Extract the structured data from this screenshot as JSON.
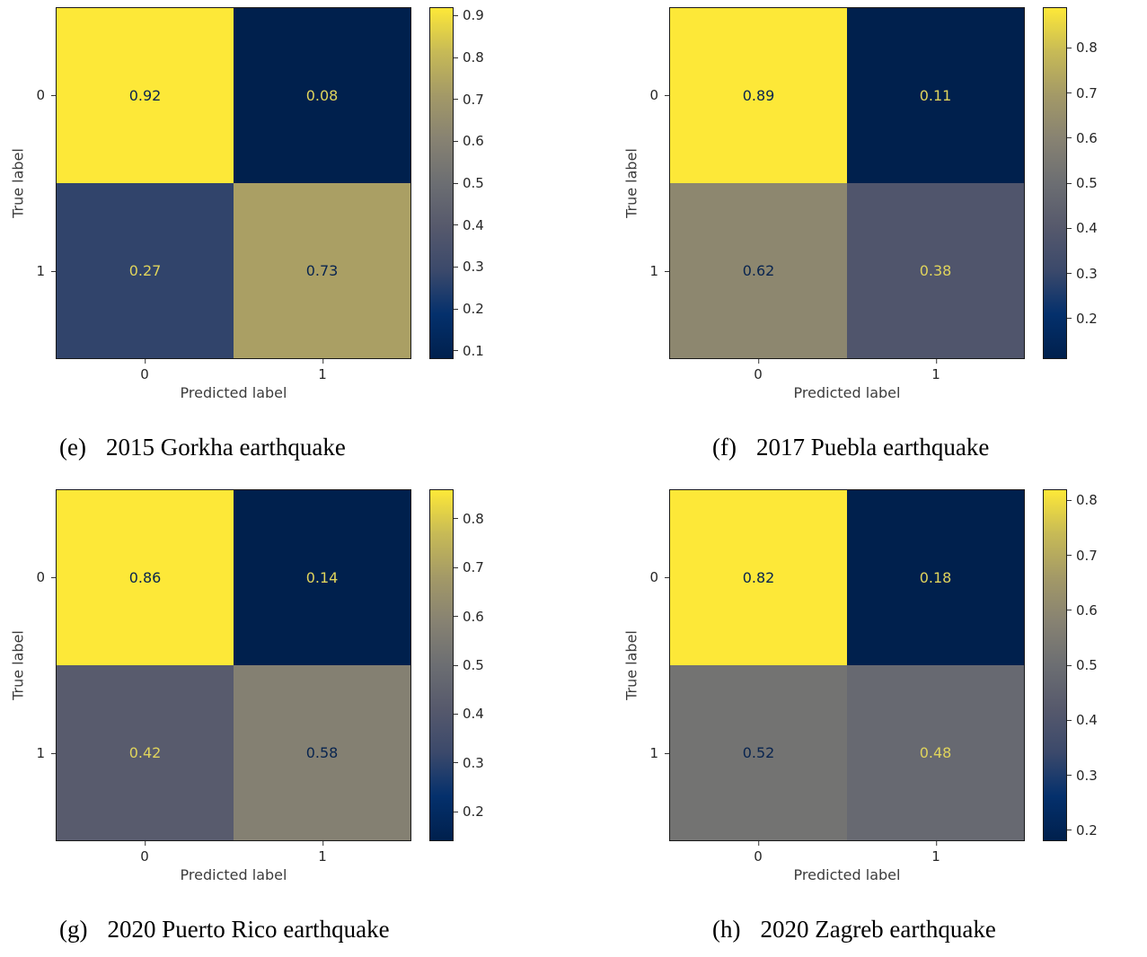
{
  "page": {
    "background": "#ffffff"
  },
  "palette": {
    "colormap": "cividis",
    "stops": [
      "#00204d",
      "#04306c",
      "#3b496b",
      "#56596c",
      "#6c6e72",
      "#878272",
      "#a39967",
      "#c7ba56",
      "#fde838"
    ],
    "cell_text_dark": "#08244f",
    "cell_text_light": "#e0d45c",
    "axis_text": "#262626",
    "border": "#1a1a1a"
  },
  "chart_data": [
    {
      "type": "heatmap",
      "name": "confusion-matrix-e",
      "caption_label": "(e)",
      "caption_text": "2015 Gorkha earthquake",
      "xlabel": "Predicted label",
      "ylabel": "True label",
      "xticklabels": [
        "0",
        "1"
      ],
      "yticklabels": [
        "0",
        "1"
      ],
      "matrix": [
        [
          0.92,
          0.08
        ],
        [
          0.27,
          0.73
        ]
      ],
      "vmin": 0.08,
      "vmax": 0.92,
      "colorbar_ticks": [
        0.1,
        0.2,
        0.3,
        0.4,
        0.5,
        0.6,
        0.7,
        0.8,
        0.9
      ]
    },
    {
      "type": "heatmap",
      "name": "confusion-matrix-f",
      "caption_label": "(f)",
      "caption_text": "2017 Puebla earthquake",
      "xlabel": "Predicted label",
      "ylabel": "True label",
      "xticklabels": [
        "0",
        "1"
      ],
      "yticklabels": [
        "0",
        "1"
      ],
      "matrix": [
        [
          0.89,
          0.11
        ],
        [
          0.62,
          0.38
        ]
      ],
      "vmin": 0.11,
      "vmax": 0.89,
      "colorbar_ticks": [
        0.2,
        0.3,
        0.4,
        0.5,
        0.6,
        0.7,
        0.8
      ]
    },
    {
      "type": "heatmap",
      "name": "confusion-matrix-g",
      "caption_label": "(g)",
      "caption_text": "2020 Puerto Rico earthquake",
      "xlabel": "Predicted label",
      "ylabel": "True label",
      "xticklabels": [
        "0",
        "1"
      ],
      "yticklabels": [
        "0",
        "1"
      ],
      "matrix": [
        [
          0.86,
          0.14
        ],
        [
          0.42,
          0.58
        ]
      ],
      "vmin": 0.14,
      "vmax": 0.86,
      "colorbar_ticks": [
        0.2,
        0.3,
        0.4,
        0.5,
        0.6,
        0.7,
        0.8
      ]
    },
    {
      "type": "heatmap",
      "name": "confusion-matrix-h",
      "caption_label": "(h)",
      "caption_text": "2020 Zagreb earthquake",
      "xlabel": "Predicted label",
      "ylabel": "True label",
      "xticklabels": [
        "0",
        "1"
      ],
      "yticklabels": [
        "0",
        "1"
      ],
      "matrix": [
        [
          0.82,
          0.18
        ],
        [
          0.52,
          0.48
        ]
      ],
      "vmin": 0.18,
      "vmax": 0.82,
      "colorbar_ticks": [
        0.2,
        0.3,
        0.4,
        0.5,
        0.6,
        0.7,
        0.8
      ]
    }
  ]
}
